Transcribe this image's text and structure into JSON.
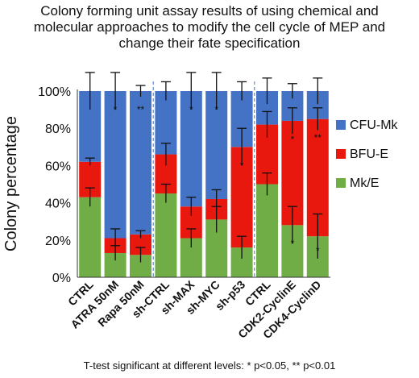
{
  "chart_data": {
    "type": "bar",
    "stacked": true,
    "title_lines": [
      "Colony forming unit assay results of using chemical and",
      "molecular approaches to modify the cell cycle of MEP and",
      "change their fate specification"
    ],
    "ylabel": "Colony percentage",
    "ylim": [
      0,
      100
    ],
    "yticks": [
      "0%",
      "20%",
      "40%",
      "60%",
      "80%",
      "100%"
    ],
    "categories": [
      "CTRL",
      "ATRA 50nM",
      "Rapa 50nM",
      "sh-CTRL",
      "sh-MAX",
      "sh-MYC",
      "sh-p53",
      "CTRL",
      "CDK2-CyclinE",
      "CDK4-CyclinD"
    ],
    "series": [
      {
        "name": "Mk/E",
        "color": "#70ad47",
        "values": [
          43,
          13,
          12,
          45,
          21,
          31,
          16,
          50,
          28,
          22
        ],
        "err": [
          5,
          4,
          4,
          5,
          5,
          7,
          6,
          6,
          10,
          12
        ]
      },
      {
        "name": "BFU-E",
        "color": "#e8180f",
        "values": [
          19,
          8,
          11,
          21,
          17,
          11,
          54,
          32,
          56,
          63
        ],
        "err": [
          2,
          5,
          2,
          6,
          5,
          5,
          10,
          7,
          7,
          6
        ]
      },
      {
        "name": "CFU-Mk",
        "color": "#4472c4",
        "values": [
          38,
          79,
          77,
          34,
          62,
          58,
          30,
          18,
          16,
          15
        ],
        "err": [
          10,
          10,
          3,
          5,
          10,
          10,
          5,
          7,
          4,
          7
        ]
      }
    ],
    "group_separators_after": [
      2,
      6
    ],
    "annotations": [
      {
        "category": 1,
        "series": "CFU-Mk",
        "text": "*"
      },
      {
        "category": 2,
        "series": "CFU-Mk",
        "text": "**"
      },
      {
        "category": 4,
        "series": "CFU-Mk",
        "text": "*"
      },
      {
        "category": 5,
        "series": "CFU-Mk",
        "text": "*"
      },
      {
        "category": 6,
        "series": "BFU-E",
        "text": "*"
      },
      {
        "category": 8,
        "series": "BFU-E",
        "text": "*"
      },
      {
        "category": 9,
        "series": "BFU-E",
        "text": "**"
      },
      {
        "category": 8,
        "series": "Mk/E",
        "text": "*"
      },
      {
        "category": 9,
        "series": "Mk/E",
        "text": "*"
      }
    ],
    "legend": [
      "CFU-Mk",
      "BFU-E",
      "Mk/E"
    ],
    "legend_position": "right",
    "grid": false
  },
  "footnote": "T-test significant at different levels: * p<0.05, ** p<0.01"
}
